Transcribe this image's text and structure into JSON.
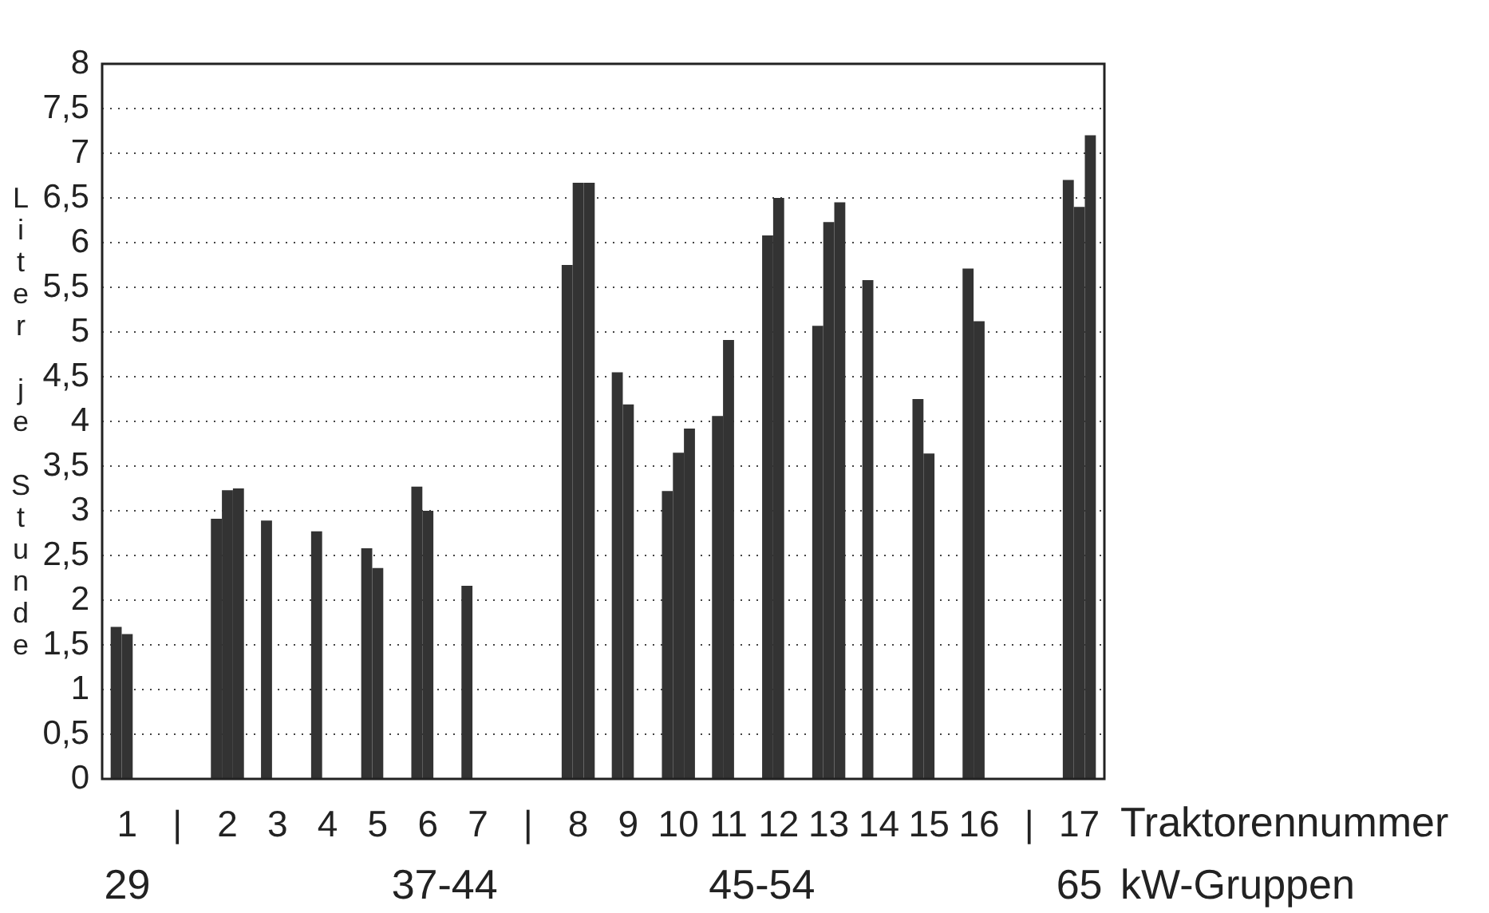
{
  "chart_data": {
    "type": "bar",
    "ylabel": "Liter je Stunde",
    "xlabel": "Traktorennummer",
    "categories": [
      "1",
      "|",
      "2",
      "3",
      "4",
      "5",
      "6",
      "7",
      "|",
      "8",
      "9",
      "10",
      "11",
      "12",
      "13",
      "14",
      "15",
      "16",
      "|",
      "17"
    ],
    "series": [
      {
        "color": "#333333",
        "values": [
          1.7,
          null,
          2.91,
          2.89,
          2.77,
          2.58,
          3.27,
          2.16,
          null,
          5.75,
          4.55,
          3.22,
          4.06,
          6.08,
          5.07,
          5.58,
          4.25,
          5.71,
          null,
          6.7
        ]
      },
      {
        "color": "#333333",
        "values": [
          1.62,
          null,
          3.23,
          null,
          null,
          2.36,
          3.0,
          null,
          null,
          6.67,
          4.19,
          3.65,
          4.91,
          6.5,
          6.23,
          null,
          3.64,
          5.12,
          null,
          6.4
        ]
      },
      {
        "color": "#333333",
        "values": [
          null,
          null,
          3.25,
          null,
          null,
          null,
          null,
          null,
          null,
          6.67,
          null,
          3.92,
          null,
          null,
          6.45,
          null,
          null,
          null,
          null,
          7.2
        ]
      }
    ],
    "ylim": [
      0,
      8
    ],
    "yticks": [
      0,
      {
        "value": 0.5,
        "label": "0,5"
      },
      1,
      {
        "value": 1.5,
        "label": "1,5"
      },
      2,
      {
        "value": 2.5,
        "label": "2,5"
      },
      3,
      {
        "value": 3.5,
        "label": "3,5"
      },
      4,
      {
        "value": 4.5,
        "label": "4,5"
      },
      5,
      {
        "value": 5.5,
        "label": "5,5"
      },
      6,
      {
        "value": 6.5,
        "label": "6,5"
      },
      7,
      {
        "value": 7.5,
        "label": "7,5"
      },
      8
    ],
    "grid": "y",
    "legend": false,
    "annotations": [
      "29",
      "37-44",
      "45-54",
      "65",
      "kW-Gruppen"
    ]
  }
}
